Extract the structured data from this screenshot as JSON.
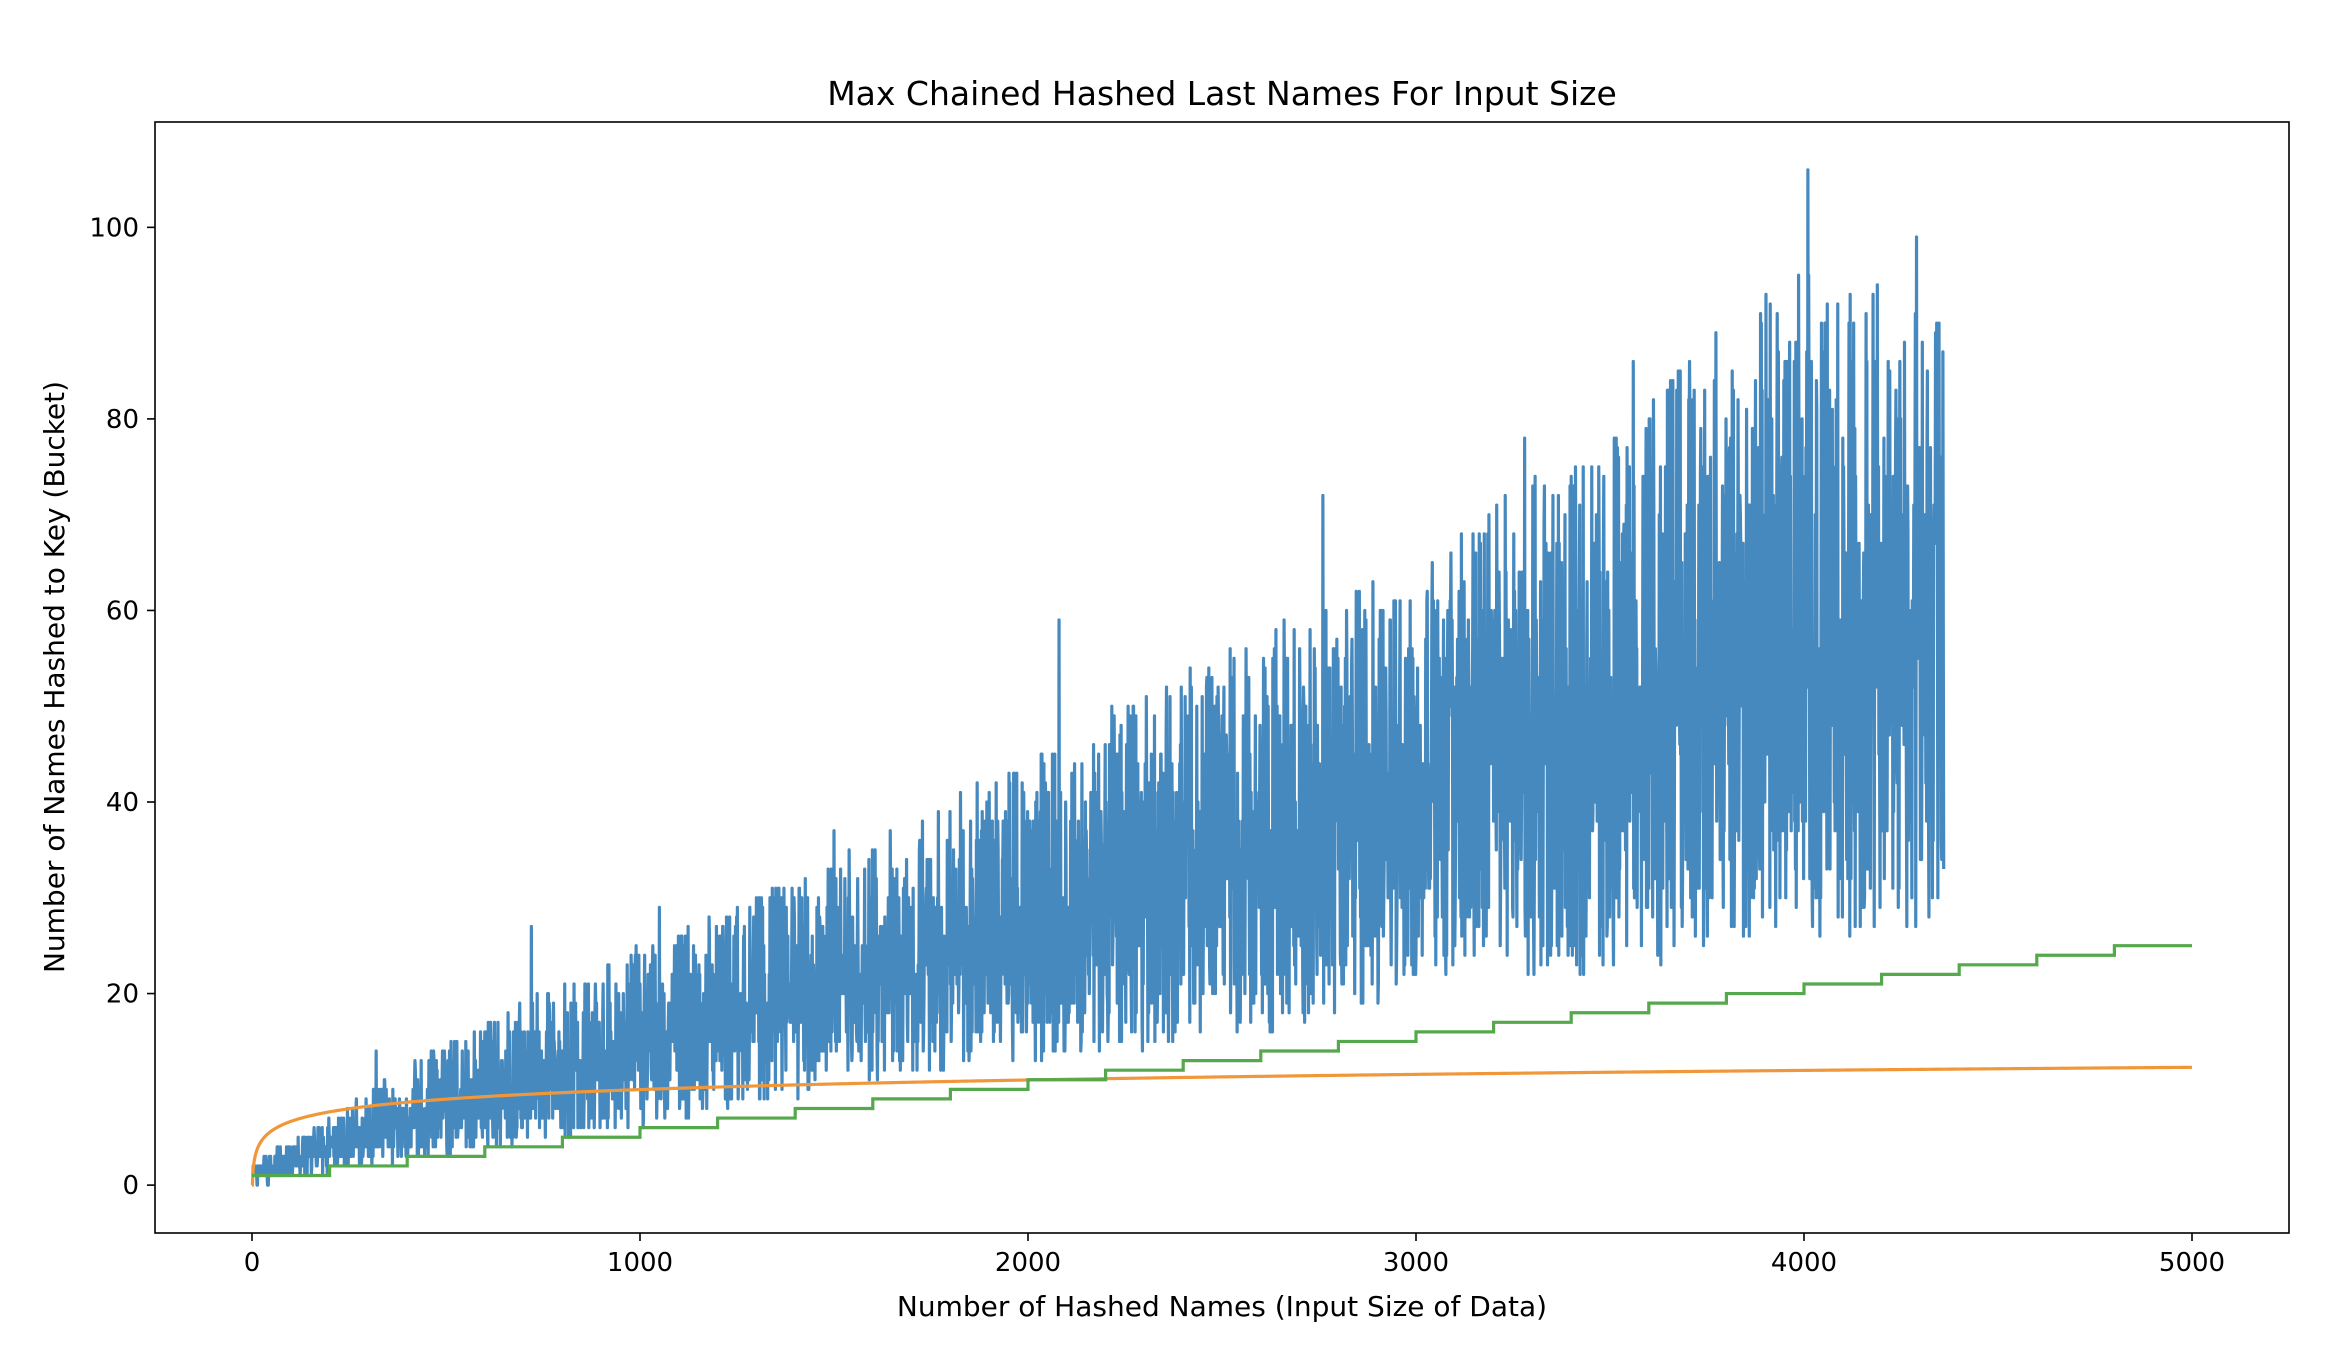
{
  "chart_data": {
    "type": "line",
    "title": "Max Chained Hashed Last Names For Input Size",
    "xlabel": "Number of Hashed Names (Input Size of Data)",
    "ylabel": "Number of Names Hashed to Key (Bucket)",
    "xlim": [
      -250,
      5250
    ],
    "ylim": [
      -5,
      111
    ],
    "xticks": [
      0,
      1000,
      2000,
      3000,
      4000,
      5000
    ],
    "yticks": [
      0,
      20,
      40,
      60,
      80,
      100
    ],
    "grid": false,
    "legend": "none",
    "series": [
      {
        "color": "#4689bf",
        "style": "noisy",
        "x_range": [
          0,
          4360
        ],
        "trend": [
          [
            0,
            1
          ],
          [
            500,
            8
          ],
          [
            1000,
            14
          ],
          [
            1500,
            20
          ],
          [
            2000,
            26
          ],
          [
            2500,
            33
          ],
          [
            3000,
            40
          ],
          [
            3500,
            46
          ],
          [
            4000,
            53
          ],
          [
            4360,
            58
          ]
        ],
        "low_envelope": [
          [
            0,
            0
          ],
          [
            500,
            3
          ],
          [
            1000,
            6
          ],
          [
            1500,
            10
          ],
          [
            2000,
            13
          ],
          [
            2500,
            15
          ],
          [
            3000,
            19
          ],
          [
            3500,
            22
          ],
          [
            4000,
            25
          ],
          [
            4360,
            27
          ]
        ],
        "high_envelope": [
          [
            0,
            2
          ],
          [
            500,
            15
          ],
          [
            1000,
            25
          ],
          [
            1500,
            34
          ],
          [
            2000,
            45
          ],
          [
            2500,
            56
          ],
          [
            3000,
            65
          ],
          [
            3500,
            80
          ],
          [
            4000,
            98
          ],
          [
            4360,
            90
          ]
        ],
        "notable_peaks": [
          [
            320,
            14
          ],
          [
            720,
            27
          ],
          [
            1050,
            29
          ],
          [
            1500,
            37
          ],
          [
            2080,
            59
          ],
          [
            2760,
            72
          ],
          [
            3280,
            78
          ],
          [
            3560,
            86
          ],
          [
            4010,
            106
          ],
          [
            4290,
            99
          ]
        ]
      },
      {
        "color": "#f0973a",
        "style": "log2",
        "x_range": [
          1,
          5000
        ],
        "endpoints": [
          [
            1,
            0
          ],
          [
            5000,
            12.3
          ]
        ]
      },
      {
        "color": "#55a84b",
        "style": "step",
        "step_every": 200,
        "x_range": [
          0,
          5000
        ],
        "start_value": 1,
        "end_value": 25
      }
    ]
  }
}
